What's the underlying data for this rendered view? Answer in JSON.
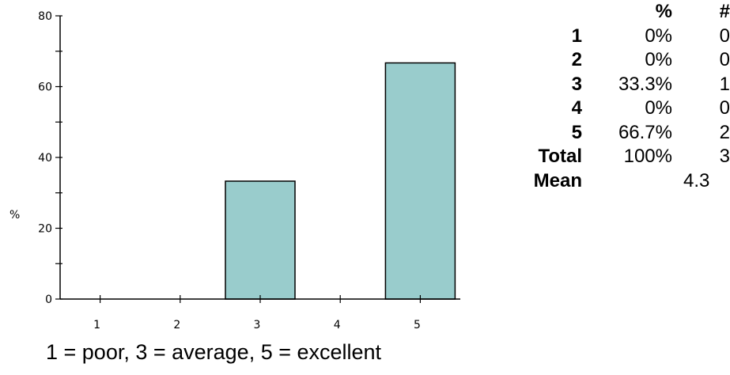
{
  "chart_data": {
    "type": "bar",
    "categories": [
      "1",
      "2",
      "3",
      "4",
      "5"
    ],
    "values": [
      0,
      0,
      33.3,
      0,
      66.7
    ],
    "ylabel": "%",
    "xlabel": "",
    "ylim": [
      0,
      80
    ],
    "yticks": [
      0,
      20,
      40,
      60,
      80
    ],
    "grid": false,
    "bar_color": "#99cccc",
    "caption": "1 = poor, 3 = average, 5 = excellent"
  },
  "stats_table": {
    "headers": {
      "percent": "%",
      "count": "#"
    },
    "rows": [
      {
        "label": "1",
        "percent": "0%",
        "count": "0"
      },
      {
        "label": "2",
        "percent": "0%",
        "count": "0"
      },
      {
        "label": "3",
        "percent": "33.3%",
        "count": "1"
      },
      {
        "label": "4",
        "percent": "0%",
        "count": "0"
      },
      {
        "label": "5",
        "percent": "66.7%",
        "count": "2"
      },
      {
        "label": "Total",
        "percent": "100%",
        "count": "3"
      },
      {
        "label": "Mean",
        "percent": "",
        "count": "4.3"
      }
    ]
  }
}
